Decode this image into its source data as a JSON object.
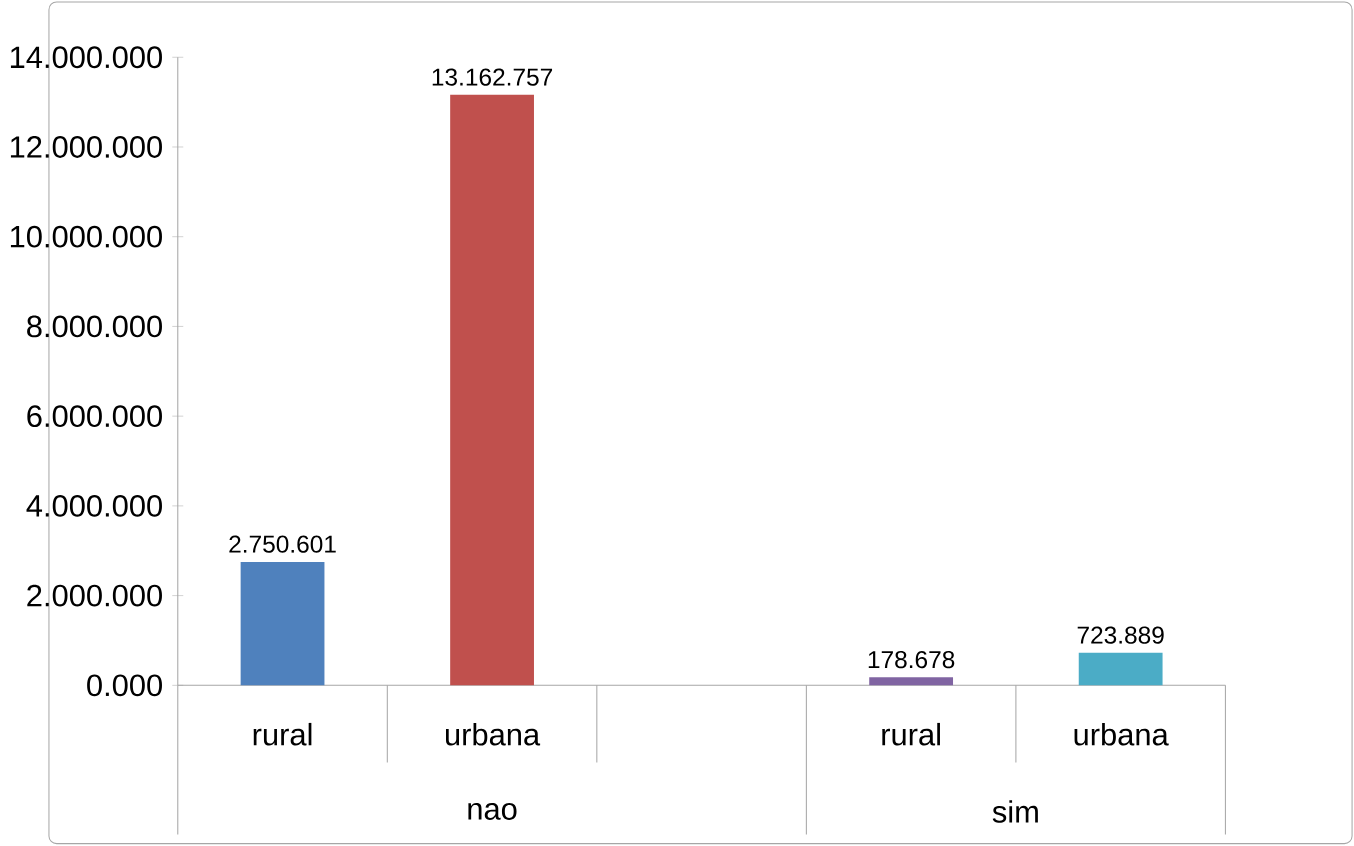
{
  "chart_data": {
    "type": "bar",
    "categories": [
      "rural",
      "urbana",
      null,
      "rural",
      "urbana"
    ],
    "values": [
      2750601,
      13162757,
      null,
      178678,
      723889
    ],
    "colors": [
      "#4f81bd",
      "#c0504d",
      "#9bbb59",
      "#8064a2",
      "#4bacc6"
    ],
    "value_labels": [
      "2.750.601",
      "13.162.757",
      null,
      "178.678",
      "723.889"
    ],
    "ylim": [
      0,
      14000000
    ],
    "yticks": [
      {
        "value": 0,
        "label": "0.000"
      },
      {
        "value": 2000000,
        "label": "2.000.000"
      },
      {
        "value": 4000000,
        "label": "4.000.000"
      },
      {
        "value": 6000000,
        "label": "6.000.000"
      },
      {
        "value": 8000000,
        "label": "8.000.000"
      },
      {
        "value": 10000000,
        "label": "10.000.000"
      },
      {
        "value": 12000000,
        "label": "12.000.000"
      },
      {
        "value": 14000000,
        "label": "14.000.000"
      }
    ],
    "annotations": [
      "nao",
      "sim"
    ]
  }
}
